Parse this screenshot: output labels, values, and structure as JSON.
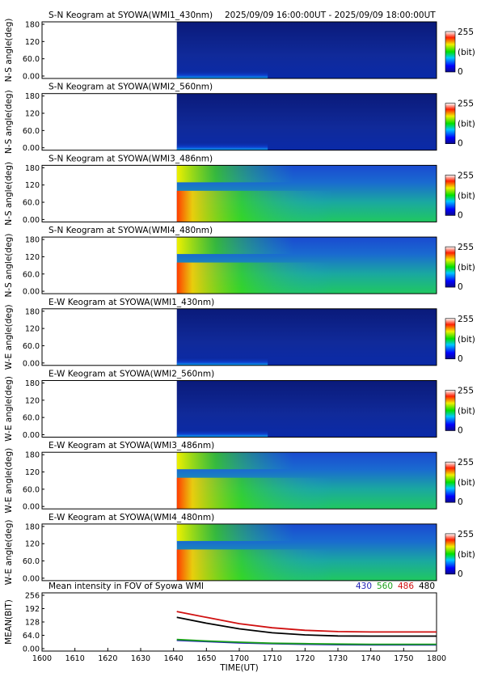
{
  "chart_data": [
    {
      "type": "heatmap",
      "title": "S-N Keogram at SYOWA(WMI1_430nm)",
      "subtitle": "2025/09/09 16:00:00UT - 2025/09/09 18:00:00UT",
      "ylabel": "N-S angle(deg)",
      "yticks": [
        "180",
        "120",
        "60.0",
        "0.00"
      ],
      "ylim": [
        0,
        180
      ],
      "data_start": "16:41",
      "intensity": "low",
      "colorbar": {
        "max_label": "255",
        "unit_label": "(bit)",
        "min_label": "0"
      }
    },
    {
      "type": "heatmap",
      "title": "S-N Keogram at SYOWA(WMI2_560nm)",
      "ylabel": "N-S angle(deg)",
      "yticks": [
        "180",
        "120",
        "60.0",
        "0.00"
      ],
      "ylim": [
        0,
        180
      ],
      "data_start": "16:41",
      "intensity": "low",
      "colorbar": {
        "max_label": "255",
        "unit_label": "(bit)",
        "min_label": "0"
      }
    },
    {
      "type": "heatmap",
      "title": "S-N Keogram at SYOWA(WMI3_486nm)",
      "ylabel": "N-S angle(deg)",
      "yticks": [
        "180",
        "120",
        "60.0",
        "0.00"
      ],
      "ylim": [
        0,
        180
      ],
      "data_start": "16:41",
      "intensity": "high",
      "colorbar": {
        "max_label": "255",
        "unit_label": "(bit)",
        "min_label": "0"
      }
    },
    {
      "type": "heatmap",
      "title": "S-N Keogram at SYOWA(WMI4_480nm)",
      "ylabel": "N-S angle(deg)",
      "yticks": [
        "180",
        "120",
        "60.0",
        "0.00"
      ],
      "ylim": [
        0,
        180
      ],
      "data_start": "16:41",
      "intensity": "high",
      "colorbar": {
        "max_label": "255",
        "unit_label": "(bit)",
        "min_label": "0"
      }
    },
    {
      "type": "heatmap",
      "title": "E-W Keogram at SYOWA(WMI1_430nm)",
      "ylabel": "W-E angle(deg)",
      "yticks": [
        "180",
        "120",
        "60.0",
        "0.00"
      ],
      "ylim": [
        0,
        180
      ],
      "data_start": "16:41",
      "intensity": "low",
      "colorbar": {
        "max_label": "255",
        "unit_label": "(bit)",
        "min_label": "0"
      }
    },
    {
      "type": "heatmap",
      "title": "E-W Keogram at SYOWA(WMI2_560nm)",
      "ylabel": "W-E angle(deg)",
      "yticks": [
        "180",
        "120",
        "60.0",
        "0.00"
      ],
      "ylim": [
        0,
        180
      ],
      "data_start": "16:41",
      "intensity": "low",
      "colorbar": {
        "max_label": "255",
        "unit_label": "(bit)",
        "min_label": "0"
      }
    },
    {
      "type": "heatmap",
      "title": "E-W Keogram at SYOWA(WMI3_486nm)",
      "ylabel": "W-E angle(deg)",
      "yticks": [
        "180",
        "120",
        "60.0",
        "0.00"
      ],
      "ylim": [
        0,
        180
      ],
      "data_start": "16:41",
      "intensity": "high",
      "colorbar": {
        "max_label": "255",
        "unit_label": "(bit)",
        "min_label": "0"
      }
    },
    {
      "type": "heatmap",
      "title": "E-W Keogram at SYOWA(WMI4_480nm)",
      "ylabel": "W-E angle(deg)",
      "yticks": [
        "180",
        "120",
        "60.0",
        "0.00"
      ],
      "ylim": [
        0,
        180
      ],
      "data_start": "16:41",
      "intensity": "high",
      "colorbar": {
        "max_label": "255",
        "unit_label": "(bit)",
        "min_label": "0"
      }
    },
    {
      "type": "line",
      "title": "Mean intensity in FOV of Syowa WMI",
      "ylabel": "MEAN(BIT)",
      "xlabel": "TIME(UT)",
      "yticks": [
        "256",
        "192",
        "128",
        "64.0",
        "0.00"
      ],
      "ylim": [
        0,
        256
      ],
      "xticks": [
        "1600",
        "1610",
        "1620",
        "1630",
        "1640",
        "1650",
        "1700",
        "1710",
        "1720",
        "1730",
        "1740",
        "1750",
        "1800"
      ],
      "x": [
        "16:41",
        "16:50",
        "17:00",
        "17:10",
        "17:20",
        "17:30",
        "17:40",
        "17:50",
        "18:00"
      ],
      "series": [
        {
          "name": "430",
          "color": "#1f1fb4",
          "values": [
            40,
            34,
            28,
            24,
            21,
            19,
            18,
            18,
            18
          ]
        },
        {
          "name": "560",
          "color": "#1aa01a",
          "values": [
            44,
            37,
            31,
            26,
            24,
            22,
            21,
            21,
            21
          ]
        },
        {
          "name": "486",
          "color": "#d01010",
          "values": [
            178,
            150,
            120,
            100,
            88,
            82,
            80,
            80,
            80
          ]
        },
        {
          "name": "480",
          "color": "#000000",
          "values": [
            150,
            122,
            95,
            76,
            66,
            61,
            60,
            60,
            60
          ]
        }
      ]
    }
  ],
  "colors": {
    "no_data": "#ffffff",
    "background": "#0a1e8c"
  }
}
